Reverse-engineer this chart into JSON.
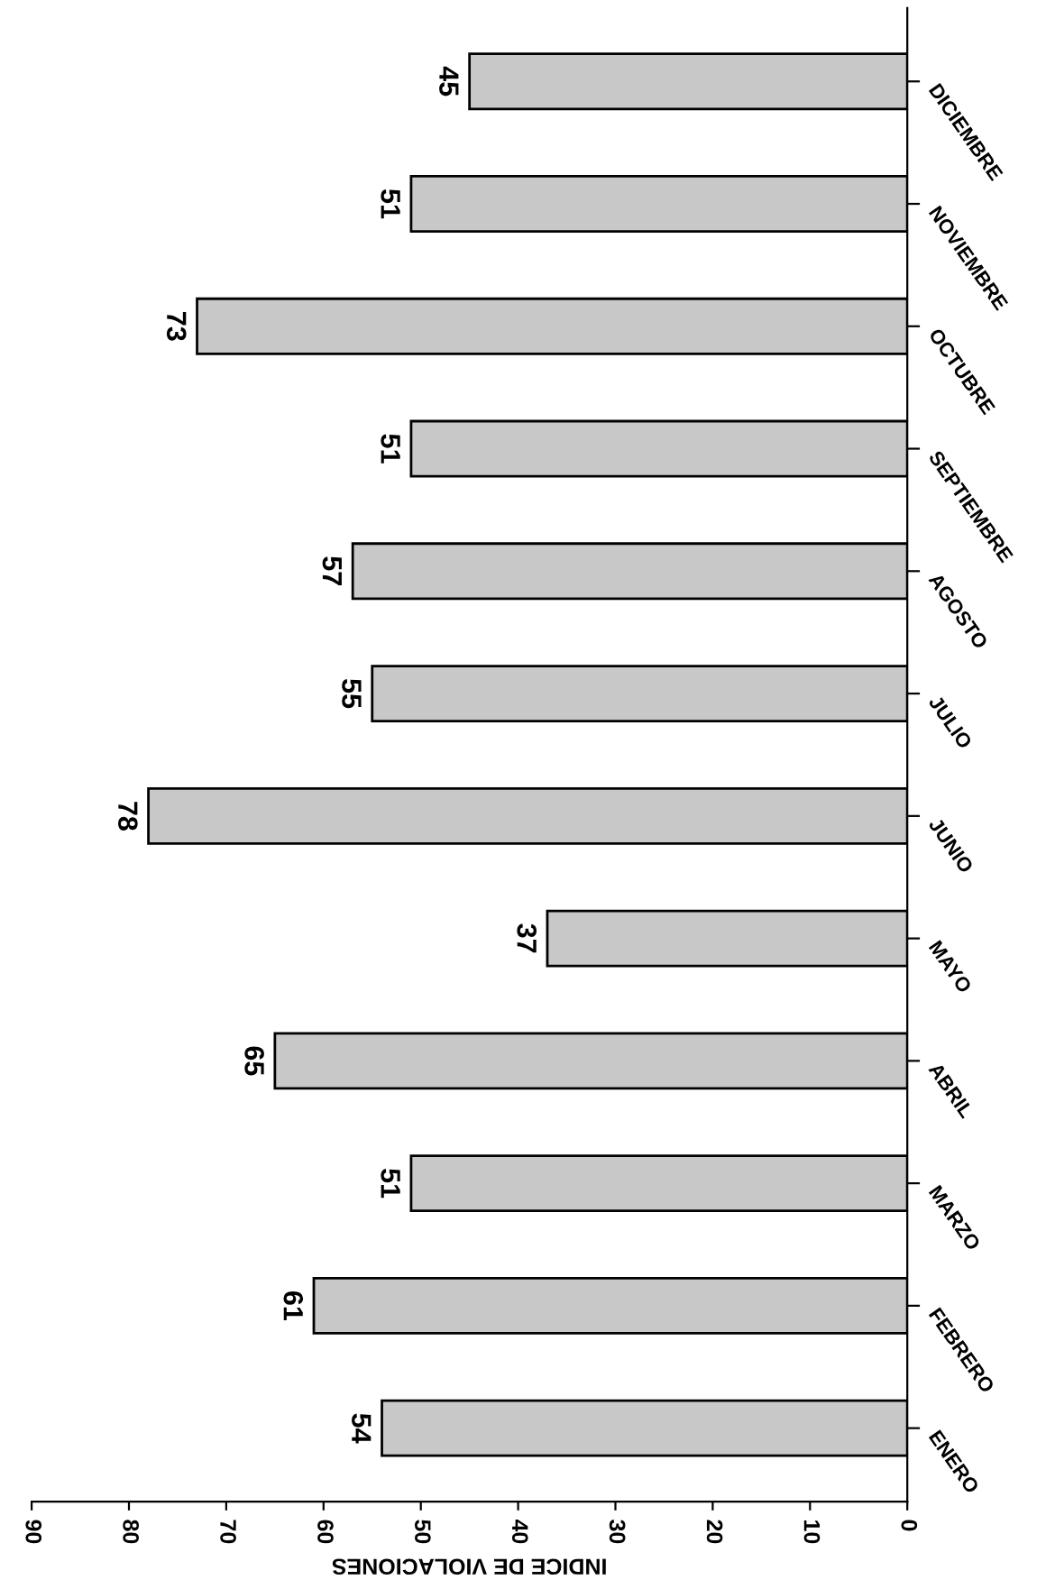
{
  "chart_data": {
    "type": "bar",
    "orientation": "horizontal",
    "xlabel": "INDICE DE VIOLACIONES",
    "categories": [
      "DICIEMBRE",
      "NOVIEMBRE",
      "OCTUBRE",
      "SEPTIEMBRE",
      "AGOSTO",
      "JULIO",
      "JUNIO",
      "MAYO",
      "ABRIL",
      "MARZO",
      "FEBRERO",
      "ENERO"
    ],
    "values": [
      45,
      51,
      73,
      51,
      57,
      55,
      78,
      37,
      65,
      51,
      61,
      54
    ],
    "color": "#c8c8c8",
    "xlim": [
      90,
      0
    ],
    "xticks": [
      0,
      10,
      20,
      30,
      40,
      50,
      60,
      70,
      80,
      90
    ],
    "data_labels": true,
    "grid": false
  }
}
